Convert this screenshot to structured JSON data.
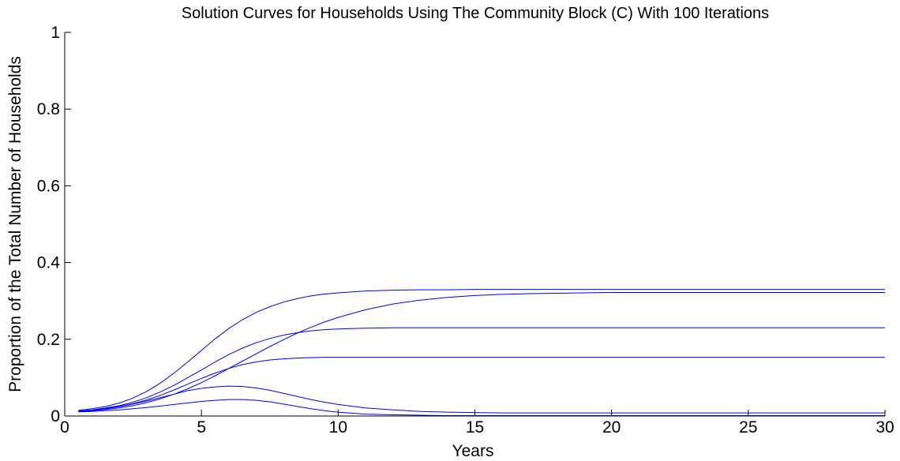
{
  "chart_data": {
    "type": "line",
    "title": "Solution Curves for Households Using The Community Block (C) With 100 Iterations",
    "xlabel": "Years",
    "ylabel": "Proportion of the Total Number of Households",
    "xlim": [
      0,
      30
    ],
    "ylim": [
      0,
      1
    ],
    "x_ticks": [
      "0",
      "5",
      "10",
      "15",
      "20",
      "25",
      "30"
    ],
    "y_ticks": [
      "0",
      "0.2",
      "0.4",
      "0.6",
      "0.8",
      "1"
    ],
    "grid": false,
    "legend": "none",
    "series_color": "#0000ff",
    "series_count": 100,
    "x": [
      0.5,
      1,
      1.5,
      2,
      2.5,
      3,
      3.5,
      4,
      4.5,
      5,
      5.5,
      6,
      6.5,
      7,
      7.5,
      8,
      8.5,
      9,
      9.5,
      10,
      11,
      12,
      13,
      14,
      15,
      16,
      17,
      18,
      20,
      22,
      24,
      26,
      28,
      30
    ],
    "series": [
      {
        "values": [
          0.015,
          0.019,
          0.025,
          0.034,
          0.047,
          0.064,
          0.086,
          0.112,
          0.141,
          0.171,
          0.201,
          0.228,
          0.251,
          0.27,
          0.285,
          0.297,
          0.306,
          0.313,
          0.318,
          0.321,
          0.326,
          0.328,
          0.329,
          0.329,
          0.33,
          0.33,
          0.33,
          0.33,
          0.33,
          0.33,
          0.33,
          0.33,
          0.33,
          0.33
        ]
      },
      {
        "values": [
          0.012,
          0.014,
          0.017,
          0.021,
          0.027,
          0.035,
          0.045,
          0.057,
          0.071,
          0.087,
          0.105,
          0.124,
          0.143,
          0.162,
          0.181,
          0.199,
          0.216,
          0.231,
          0.245,
          0.257,
          0.277,
          0.292,
          0.302,
          0.309,
          0.314,
          0.317,
          0.319,
          0.32,
          0.322,
          0.322,
          0.322,
          0.322,
          0.322,
          0.322
        ]
      },
      {
        "values": [
          0.013,
          0.016,
          0.021,
          0.027,
          0.036,
          0.048,
          0.063,
          0.08,
          0.1,
          0.12,
          0.141,
          0.16,
          0.177,
          0.191,
          0.202,
          0.211,
          0.217,
          0.222,
          0.225,
          0.227,
          0.229,
          0.23,
          0.23,
          0.23,
          0.23,
          0.23,
          0.23,
          0.23,
          0.23,
          0.23,
          0.23,
          0.23,
          0.23,
          0.23
        ]
      },
      {
        "values": [
          0.012,
          0.015,
          0.019,
          0.025,
          0.032,
          0.042,
          0.054,
          0.068,
          0.083,
          0.098,
          0.112,
          0.124,
          0.134,
          0.141,
          0.146,
          0.149,
          0.151,
          0.152,
          0.153,
          0.153,
          0.153,
          0.153,
          0.153,
          0.153,
          0.153,
          0.153,
          0.153,
          0.153,
          0.153,
          0.153,
          0.153,
          0.153,
          0.153,
          0.153
        ]
      },
      {
        "values": [
          0.012,
          0.015,
          0.019,
          0.024,
          0.031,
          0.039,
          0.048,
          0.057,
          0.066,
          0.072,
          0.076,
          0.078,
          0.077,
          0.073,
          0.067,
          0.059,
          0.051,
          0.043,
          0.036,
          0.03,
          0.021,
          0.016,
          0.012,
          0.01,
          0.009,
          0.008,
          0.008,
          0.008,
          0.008,
          0.008,
          0.008,
          0.008,
          0.008,
          0.008
        ]
      },
      {
        "values": [
          0.011,
          0.012,
          0.014,
          0.016,
          0.019,
          0.022,
          0.026,
          0.03,
          0.034,
          0.038,
          0.041,
          0.043,
          0.043,
          0.041,
          0.037,
          0.031,
          0.025,
          0.019,
          0.014,
          0.01,
          0.005,
          0.003,
          0.002,
          0.001,
          0.001,
          0.001,
          0.001,
          0.001,
          0.001,
          0.001,
          0.001,
          0.001,
          0.001,
          0.001
        ]
      }
    ]
  }
}
